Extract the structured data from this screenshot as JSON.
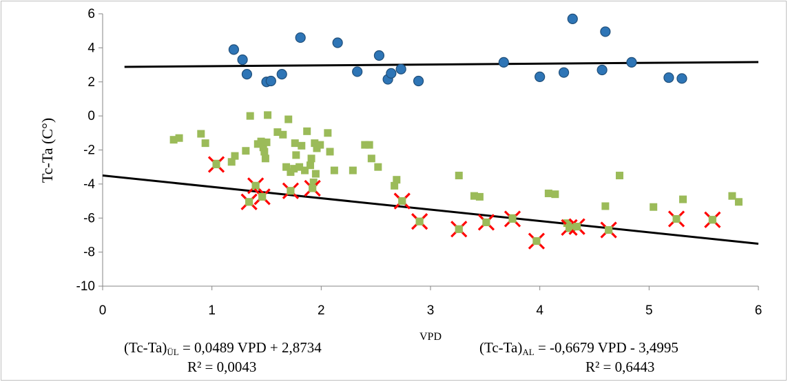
{
  "chart_data": {
    "type": "scatter",
    "xlabel": "VPD",
    "ylabel": "Tc-Ta (C°)",
    "xlim": [
      0,
      6
    ],
    "ylim": [
      -10,
      6
    ],
    "x_ticks": [
      "0",
      "1",
      "2",
      "3",
      "4",
      "5",
      "6"
    ],
    "y_ticks": [
      "6",
      "4",
      "2",
      "0",
      "-2",
      "-4",
      "-6",
      "-8",
      "-10"
    ],
    "grid": false,
    "legend": "none",
    "colors": {
      "upper": "#2e75b6",
      "upper_edge": "#1f4e79",
      "lower": "#9bbb59",
      "outlier_x": "#ff0000",
      "trend": "#000000"
    },
    "series": [
      {
        "marker": "circle",
        "points": [
          [
            1.2,
            3.9
          ],
          [
            1.28,
            3.3
          ],
          [
            1.32,
            2.45
          ],
          [
            1.5,
            2.0
          ],
          [
            1.54,
            2.05
          ],
          [
            1.64,
            2.45
          ],
          [
            1.81,
            4.6
          ],
          [
            2.15,
            4.3
          ],
          [
            2.33,
            2.6
          ],
          [
            2.53,
            3.55
          ],
          [
            2.61,
            2.15
          ],
          [
            2.64,
            2.5
          ],
          [
            2.73,
            2.75
          ],
          [
            2.89,
            2.05
          ],
          [
            3.67,
            3.15
          ],
          [
            4.0,
            2.3
          ],
          [
            4.22,
            2.55
          ],
          [
            4.3,
            5.7
          ],
          [
            4.57,
            2.7
          ],
          [
            4.6,
            4.95
          ],
          [
            4.84,
            3.15
          ],
          [
            5.18,
            2.25
          ],
          [
            5.3,
            2.2
          ]
        ]
      },
      {
        "marker": "square",
        "points": [
          [
            0.65,
            -1.4
          ],
          [
            0.7,
            -1.3
          ],
          [
            0.9,
            -1.05
          ],
          [
            0.94,
            -1.6
          ],
          [
            1.04,
            -2.8
          ],
          [
            1.18,
            -2.7
          ],
          [
            1.21,
            -2.35
          ],
          [
            1.31,
            -2.05
          ],
          [
            1.34,
            -5.05
          ],
          [
            1.35,
            0.0
          ],
          [
            1.4,
            -4.1
          ],
          [
            1.42,
            -1.65
          ],
          [
            1.45,
            -1.5
          ],
          [
            1.46,
            -4.75
          ],
          [
            1.47,
            -1.85
          ],
          [
            1.48,
            -2.1
          ],
          [
            1.49,
            -2.5
          ],
          [
            1.5,
            -1.55
          ],
          [
            1.51,
            0.05
          ],
          [
            1.6,
            -0.95
          ],
          [
            1.65,
            -1.1
          ],
          [
            1.68,
            -3.0
          ],
          [
            1.7,
            -0.2
          ],
          [
            1.72,
            -4.4
          ],
          [
            1.72,
            -3.3
          ],
          [
            1.75,
            -3.1
          ],
          [
            1.76,
            -1.6
          ],
          [
            1.77,
            -2.3
          ],
          [
            1.8,
            -3.0
          ],
          [
            1.82,
            -1.75
          ],
          [
            1.85,
            -3.2
          ],
          [
            1.87,
            -0.9
          ],
          [
            1.9,
            -2.9
          ],
          [
            1.91,
            -2.5
          ],
          [
            1.92,
            -4.2
          ],
          [
            1.93,
            -3.9
          ],
          [
            1.94,
            -1.6
          ],
          [
            1.95,
            -3.4
          ],
          [
            1.96,
            -1.9
          ],
          [
            1.99,
            -1.7
          ],
          [
            2.06,
            -1.0
          ],
          [
            2.08,
            -2.1
          ],
          [
            2.12,
            -3.2
          ],
          [
            2.29,
            -3.2
          ],
          [
            2.4,
            -1.7
          ],
          [
            2.44,
            -1.7
          ],
          [
            2.46,
            -2.5
          ],
          [
            2.52,
            -3.0
          ],
          [
            2.67,
            -4.1
          ],
          [
            2.69,
            -3.75
          ],
          [
            2.74,
            -5.0
          ],
          [
            2.9,
            -6.2
          ],
          [
            3.26,
            -3.5
          ],
          [
            3.26,
            -6.65
          ],
          [
            3.4,
            -4.7
          ],
          [
            3.45,
            -4.75
          ],
          [
            3.51,
            -6.25
          ],
          [
            3.75,
            -6.0
          ],
          [
            3.97,
            -7.35
          ],
          [
            4.08,
            -4.55
          ],
          [
            4.14,
            -4.6
          ],
          [
            4.25,
            -6.3
          ],
          [
            4.27,
            -6.6
          ],
          [
            4.29,
            -6.55
          ],
          [
            4.34,
            -6.5
          ],
          [
            4.63,
            -6.7
          ],
          [
            4.6,
            -5.3
          ],
          [
            4.73,
            -3.5
          ],
          [
            5.04,
            -5.35
          ],
          [
            5.25,
            -6.05
          ],
          [
            5.31,
            -4.9
          ],
          [
            5.58,
            -6.1
          ],
          [
            5.76,
            -4.7
          ],
          [
            5.82,
            -5.05
          ]
        ]
      },
      {
        "marker": "x",
        "points": [
          [
            1.04,
            -2.85
          ],
          [
            1.34,
            -5.05
          ],
          [
            1.4,
            -4.1
          ],
          [
            1.46,
            -4.75
          ],
          [
            1.72,
            -4.4
          ],
          [
            1.92,
            -4.25
          ],
          [
            2.74,
            -5.0
          ],
          [
            2.9,
            -6.2
          ],
          [
            3.26,
            -6.65
          ],
          [
            3.51,
            -6.25
          ],
          [
            3.75,
            -6.05
          ],
          [
            3.97,
            -7.35
          ],
          [
            4.27,
            -6.55
          ],
          [
            4.34,
            -6.5
          ],
          [
            4.63,
            -6.7
          ],
          [
            5.25,
            -6.05
          ],
          [
            5.58,
            -6.1
          ]
        ]
      }
    ],
    "trendlines": [
      {
        "slope": 0.0489,
        "intercept": 2.8734,
        "x_range": [
          0.2,
          6.0
        ]
      },
      {
        "slope": -0.6679,
        "intercept": -3.4995,
        "x_range": [
          0.0,
          6.0
        ]
      }
    ],
    "annotations": {
      "left": {
        "lhs": "(Tc-Ta)",
        "sub": "ÜL",
        "rhs": " = 0,0489 VPD + 2,8734",
        "r2": "R² = 0,0043"
      },
      "right": {
        "lhs": "(Tc-Ta)",
        "sub": "AL",
        "rhs": " = -0,6679 VPD - 3,4995",
        "r2": "R² = 0,6443"
      }
    }
  }
}
